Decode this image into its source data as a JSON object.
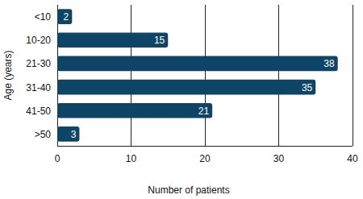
{
  "chart_data": {
    "type": "bar",
    "orientation": "horizontal",
    "categories": [
      "<10",
      "10-20",
      "21-30",
      "31-40",
      "41-50",
      ">50"
    ],
    "values": [
      2,
      15,
      38,
      35,
      21,
      3
    ],
    "color": "#0e4566",
    "xlim": [
      0,
      40
    ],
    "xticks": [
      0,
      10,
      20,
      30,
      40
    ],
    "x_label": "Number of patients",
    "y_label": "Age (years)",
    "grid": true,
    "data_labels": true
  }
}
